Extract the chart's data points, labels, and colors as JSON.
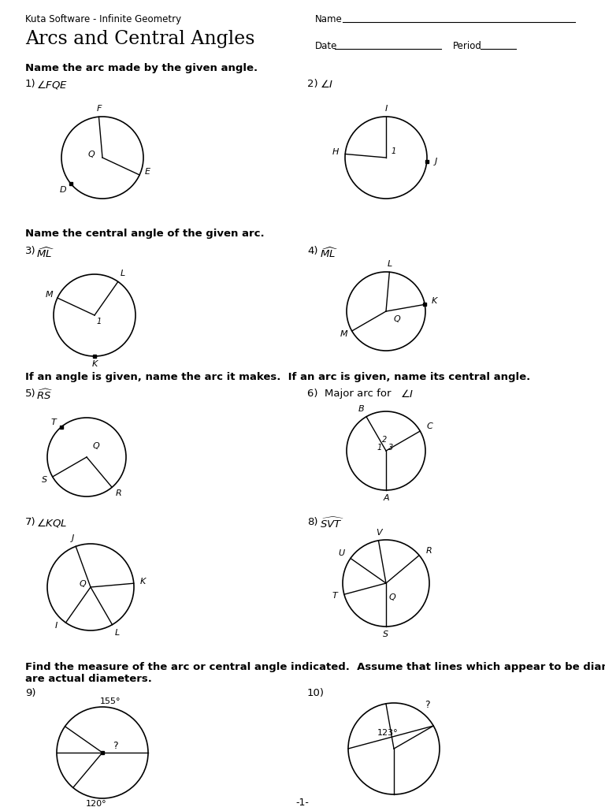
{
  "bg_color": "#ffffff",
  "header_left": "Kuta Software - Infinite Geometry",
  "header_name": "Name",
  "title": "Arcs and Central Angles",
  "date_label": "Date",
  "period_label": "Period",
  "section1_label": "Name the arc made by the given angle.",
  "section2_label": "Name the central angle of the given arc.",
  "section3_label": "If an angle is given, name the arc it makes.  If an arc is given, name its central angle.",
  "section4_label1": "Find the measure of the arc or central angle indicated.  Assume that lines which appear to be diameters",
  "section4_label2": "are actual diameters.",
  "page_num": "-1-"
}
